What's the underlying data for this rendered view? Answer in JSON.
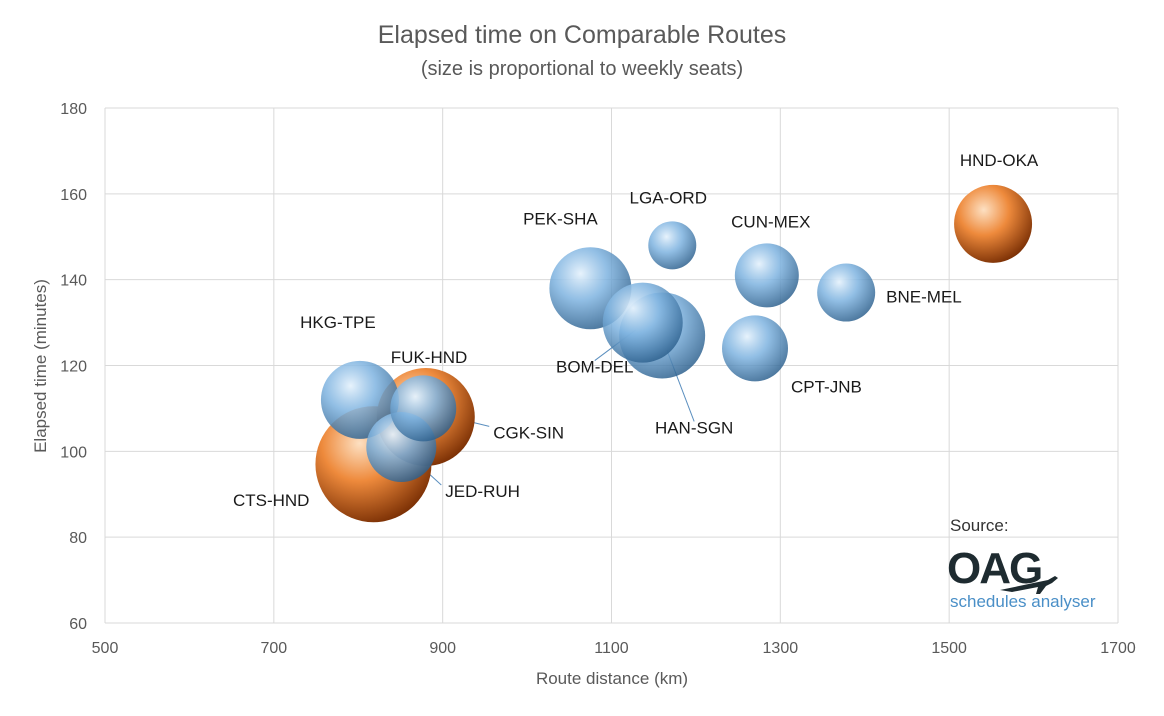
{
  "chart_data": {
    "type": "bubble",
    "title": "Elapsed time on Comparable Routes",
    "subtitle": "(size is proportional to weekly seats)",
    "xlabel": "Route distance (km)",
    "ylabel": "Elapsed time (minutes)",
    "xlim": [
      500,
      1700
    ],
    "ylim": [
      60,
      180
    ],
    "xticks": [
      500,
      700,
      900,
      1100,
      1300,
      1500,
      1700
    ],
    "yticks": [
      60,
      80,
      100,
      120,
      140,
      160,
      180
    ],
    "grid": true,
    "colors": {
      "highlight": "#e87a2a",
      "other": "#6fa8dc"
    },
    "points": [
      {
        "label": "CTS-HND",
        "x": 818,
        "y": 97,
        "size": 58,
        "highlight": true
      },
      {
        "label": "FUK-HND",
        "x": 880,
        "y": 108,
        "size": 49,
        "highlight": true
      },
      {
        "label": "HKG-TPE",
        "x": 802,
        "y": 112,
        "size": 39,
        "highlight": false
      },
      {
        "label": "JED-RUH",
        "x": 851,
        "y": 101,
        "size": 35,
        "highlight": false
      },
      {
        "label": "CGK-SIN",
        "x": 877,
        "y": 110,
        "size": 33,
        "highlight": false
      },
      {
        "label": "PEK-SHA",
        "x": 1075,
        "y": 138,
        "size": 41,
        "highlight": false
      },
      {
        "label": "BOM-DEL",
        "x": 1137,
        "y": 130,
        "size": 40,
        "highlight": false
      },
      {
        "label": "HAN-SGN",
        "x": 1160,
        "y": 127,
        "size": 43,
        "highlight": false
      },
      {
        "label": "LGA-ORD",
        "x": 1172,
        "y": 148,
        "size": 24,
        "highlight": false
      },
      {
        "label": "CUN-MEX",
        "x": 1284,
        "y": 141,
        "size": 32,
        "highlight": false
      },
      {
        "label": "BNE-MEL",
        "x": 1378,
        "y": 137,
        "size": 29,
        "highlight": false
      },
      {
        "label": "CPT-JNB",
        "x": 1270,
        "y": 124,
        "size": 33,
        "highlight": false
      },
      {
        "label": "HND-OKA",
        "x": 1552,
        "y": 153,
        "size": 39,
        "highlight": true
      }
    ]
  },
  "source": {
    "label": "Source:",
    "logo": "OAG",
    "product": "schedules analyser"
  }
}
